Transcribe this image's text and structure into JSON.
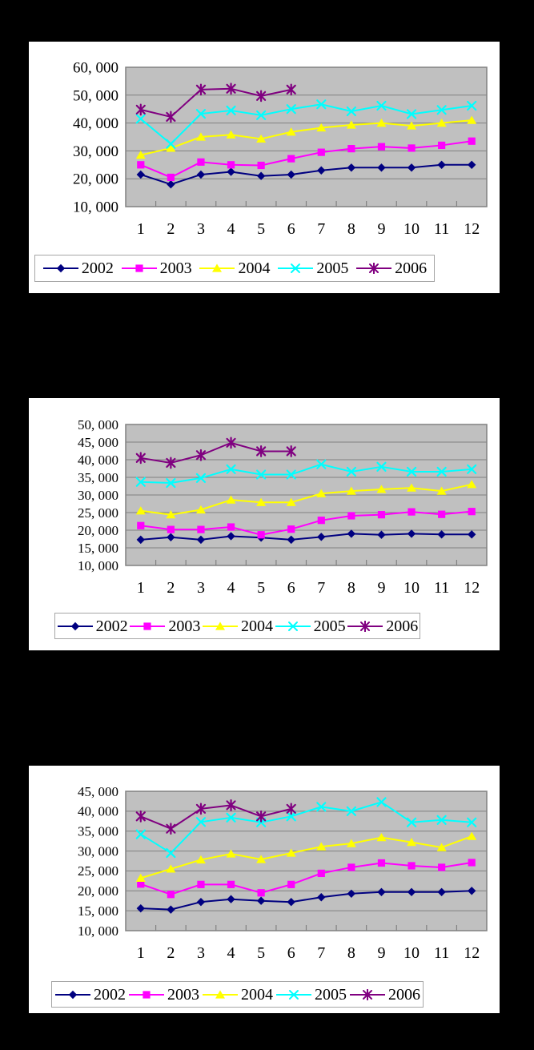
{
  "style": {
    "page_background": "#000000",
    "panel_background": "#FFFFFF",
    "plot_background": "#C0C0C0",
    "gridline_color": "#808080",
    "axis_text_color": "#000000",
    "legend_border_color": "#A6A6A6"
  },
  "chart_data": [
    {
      "type": "line",
      "title": "",
      "xlabel": "",
      "ylabel": "",
      "categories": [
        "1",
        "2",
        "3",
        "4",
        "5",
        "6",
        "7",
        "8",
        "9",
        "10",
        "11",
        "12"
      ],
      "ylim": [
        10000,
        60000
      ],
      "ystep": 10000,
      "ytick_labels": [
        "60, 000",
        "50, 000",
        "40, 000",
        "30, 000",
        "20, 000",
        "10, 000"
      ],
      "grid": true,
      "legend_position": "bottom",
      "series": [
        {
          "name": "2002",
          "color": "#000080",
          "marker": "diamond",
          "values": [
            21500,
            18000,
            21500,
            22500,
            21000,
            21500,
            23000,
            24000,
            24000,
            24000,
            25000,
            25000
          ]
        },
        {
          "name": "2003",
          "color": "#FF00FF",
          "marker": "square",
          "values": [
            25000,
            20500,
            26000,
            25000,
            24800,
            27200,
            29500,
            30800,
            31500,
            31000,
            32000,
            33500
          ]
        },
        {
          "name": "2004",
          "color": "#FFFF00",
          "marker": "triangle",
          "values": [
            28500,
            31000,
            35000,
            35800,
            34300,
            36800,
            38300,
            39300,
            40000,
            39000,
            40000,
            41000
          ]
        },
        {
          "name": "2005",
          "color": "#00FFFF",
          "marker": "x",
          "values": [
            41500,
            32500,
            43300,
            44500,
            42800,
            45000,
            46700,
            44200,
            46200,
            43200,
            44700,
            46200
          ]
        },
        {
          "name": "2006",
          "color": "#800080",
          "marker": "star",
          "values": [
            44800,
            42200,
            52000,
            52300,
            49700,
            52000
          ]
        }
      ]
    },
    {
      "type": "line",
      "title": "",
      "xlabel": "",
      "ylabel": "",
      "categories": [
        "1",
        "2",
        "3",
        "4",
        "5",
        "6",
        "7",
        "8",
        "9",
        "10",
        "11",
        "12"
      ],
      "ylim": [
        10000,
        50000
      ],
      "ystep": 5000,
      "ytick_labels": [
        "50, 000",
        "45, 000",
        "40, 000",
        "35, 000",
        "30, 000",
        "25, 000",
        "20, 000",
        "15, 000",
        "10, 000"
      ],
      "grid": true,
      "legend_position": "bottom",
      "series": [
        {
          "name": "2002",
          "color": "#000080",
          "marker": "diamond",
          "values": [
            17300,
            18000,
            17300,
            18300,
            17900,
            17300,
            18100,
            19000,
            18700,
            19000,
            18800,
            18800
          ]
        },
        {
          "name": "2003",
          "color": "#FF00FF",
          "marker": "square",
          "values": [
            21300,
            20200,
            20200,
            20900,
            18700,
            20300,
            22800,
            24100,
            24400,
            25200,
            24500,
            25300
          ]
        },
        {
          "name": "2004",
          "color": "#FFFF00",
          "marker": "triangle",
          "values": [
            25500,
            24400,
            25800,
            28600,
            27900,
            27900,
            30400,
            31100,
            31600,
            32000,
            31100,
            33000
          ]
        },
        {
          "name": "2005",
          "color": "#00FFFF",
          "marker": "x",
          "values": [
            33700,
            33400,
            34800,
            37300,
            35800,
            35800,
            38700,
            36600,
            38000,
            36600,
            36600,
            37300
          ]
        },
        {
          "name": "2006",
          "color": "#800080",
          "marker": "star",
          "values": [
            40500,
            39100,
            41300,
            44800,
            42400,
            42400
          ]
        }
      ]
    },
    {
      "type": "line",
      "title": "",
      "xlabel": "",
      "ylabel": "",
      "categories": [
        "1",
        "2",
        "3",
        "4",
        "5",
        "6",
        "7",
        "8",
        "9",
        "10",
        "11",
        "12"
      ],
      "ylim": [
        10000,
        45000
      ],
      "ystep": 5000,
      "ytick_labels": [
        "45, 000",
        "40, 000",
        "35, 000",
        "30, 000",
        "25, 000",
        "20, 000",
        "15, 000",
        "10, 000"
      ],
      "grid": true,
      "legend_position": "bottom",
      "series": [
        {
          "name": "2002",
          "color": "#000080",
          "marker": "diamond",
          "values": [
            15600,
            15300,
            17200,
            17900,
            17500,
            17200,
            18400,
            19300,
            19700,
            19700,
            19700,
            20000
          ]
        },
        {
          "name": "2003",
          "color": "#FF00FF",
          "marker": "square",
          "values": [
            21700,
            19100,
            21600,
            21600,
            19500,
            21600,
            24400,
            25900,
            27000,
            26300,
            25900,
            27100
          ]
        },
        {
          "name": "2004",
          "color": "#FFFF00",
          "marker": "triangle",
          "values": [
            23200,
            25500,
            27800,
            29300,
            27900,
            29500,
            31100,
            31900,
            33400,
            32200,
            30900,
            33700
          ]
        },
        {
          "name": "2005",
          "color": "#00FFFF",
          "marker": "x",
          "values": [
            34200,
            29500,
            37300,
            38400,
            37200,
            38700,
            41100,
            40000,
            42300,
            37200,
            37800,
            37200
          ]
        },
        {
          "name": "2006",
          "color": "#800080",
          "marker": "star",
          "values": [
            38700,
            35600,
            40600,
            41500,
            38700,
            40600
          ]
        }
      ]
    }
  ]
}
